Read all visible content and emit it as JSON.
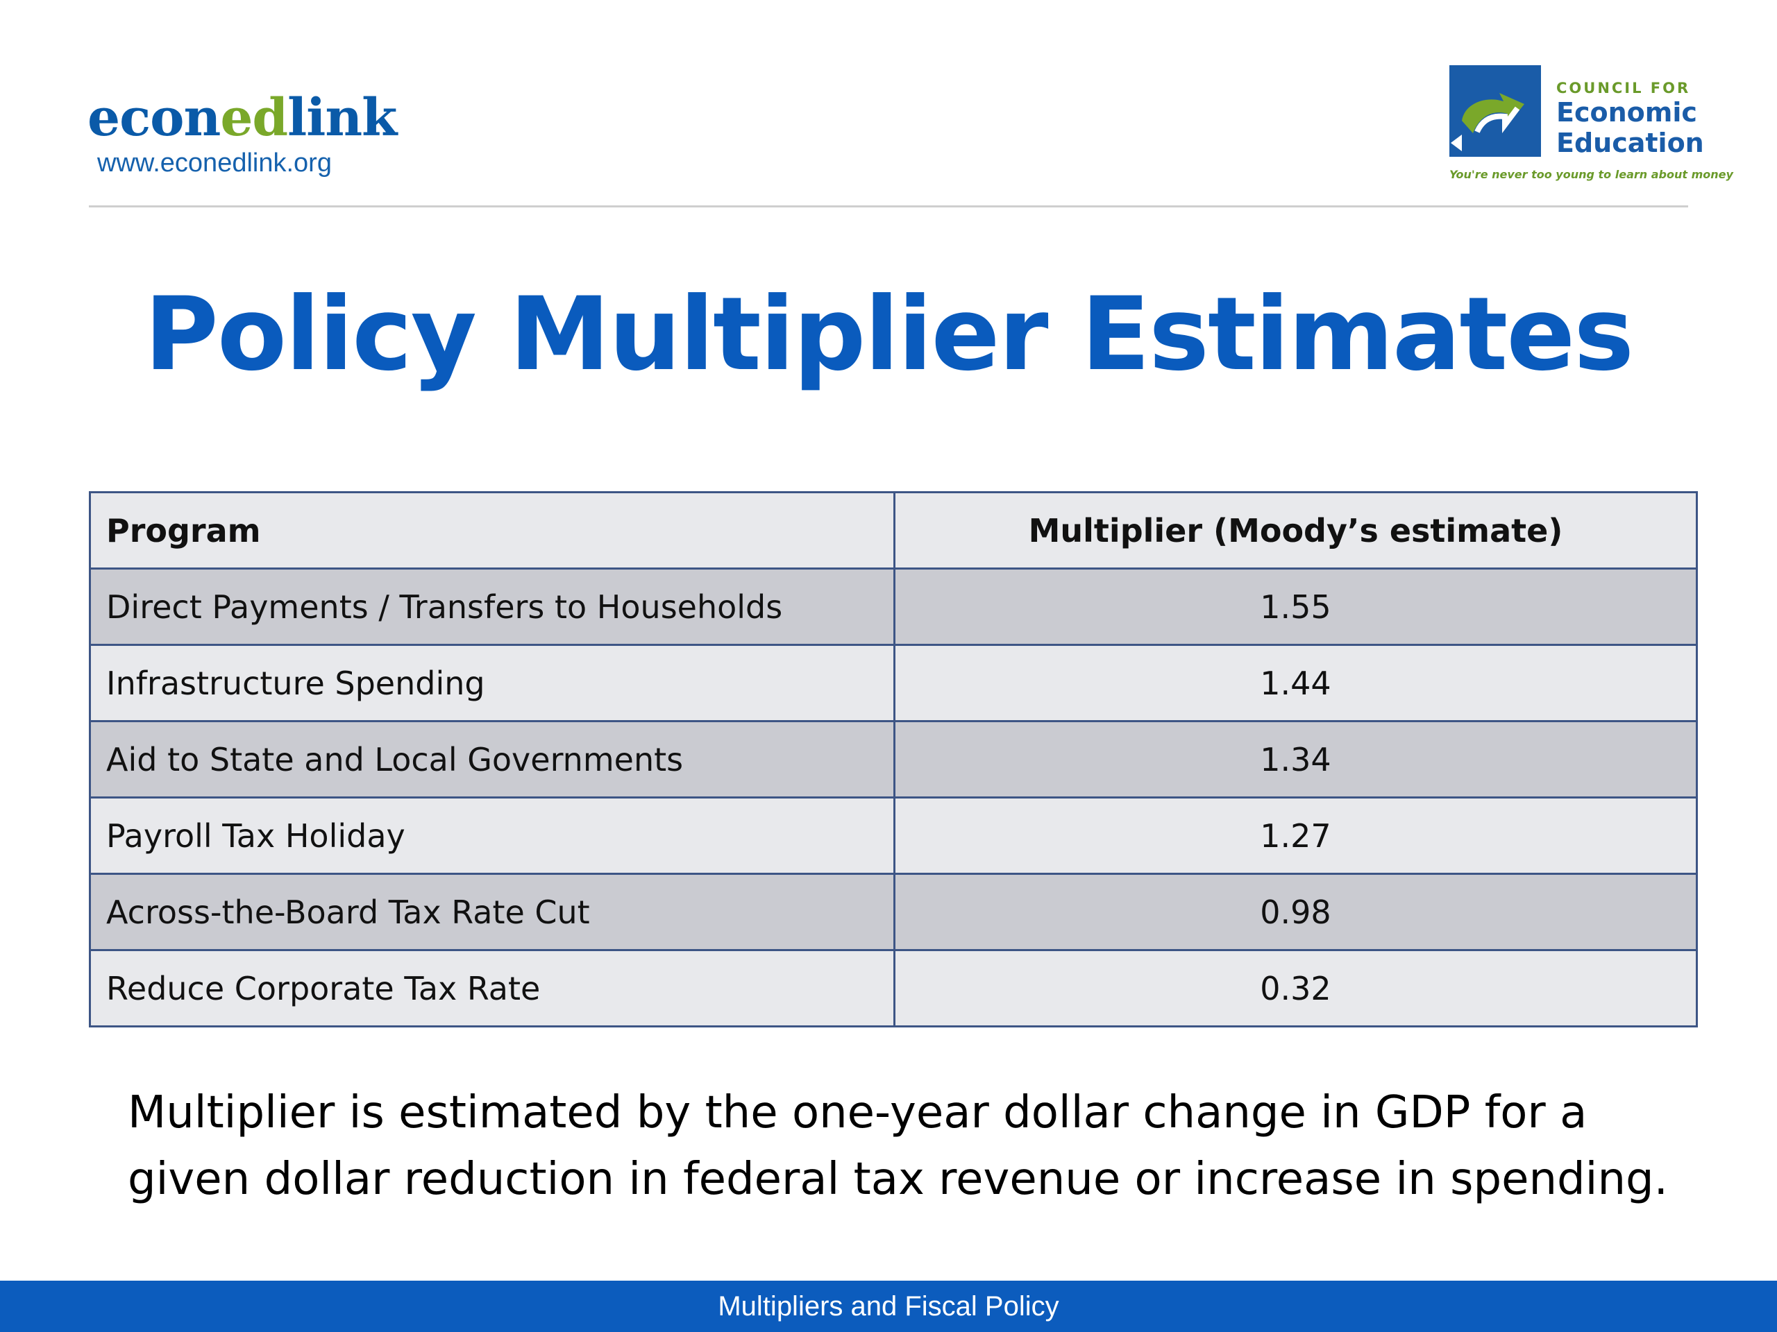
{
  "header": {
    "brand_left": {
      "wordmark_prefix": "econ",
      "wordmark_mid": "ed",
      "wordmark_suffix": "link",
      "url": "www.econedlink.org"
    },
    "brand_right": {
      "top_line": "COUNCIL FOR",
      "line1": "Economic",
      "line2": "Education",
      "tagline": "You're never too young to learn about money"
    }
  },
  "title": "Policy Multiplier Estimates",
  "table": {
    "headers": [
      "Program",
      "Multiplier (Moody’s estimate)"
    ],
    "rows": [
      {
        "program": "Direct Payments / Transfers to Households",
        "multiplier": "1.55"
      },
      {
        "program": "Infrastructure Spending",
        "multiplier": "1.44"
      },
      {
        "program": "Aid to State and Local Governments",
        "multiplier": "1.34"
      },
      {
        "program": "Payroll Tax Holiday",
        "multiplier": "1.27"
      },
      {
        "program": "Across-the-Board Tax Rate Cut",
        "multiplier": "0.98"
      },
      {
        "program": "Reduce Corporate Tax Rate",
        "multiplier": "0.32"
      }
    ]
  },
  "footnote": "Multiplier is estimated by the one-year dollar change in GDP for a given dollar reduction in federal tax revenue or increase in spending.",
  "footer": {
    "text": "Multipliers and Fiscal Policy"
  },
  "colors": {
    "title_blue": "#0a5bbd",
    "brand_green": "#7aa82a",
    "footer_blue": "#0c5cbd",
    "row_dark": "#cacbd1",
    "row_light": "#e8e9ec",
    "table_border": "#3d5585"
  }
}
